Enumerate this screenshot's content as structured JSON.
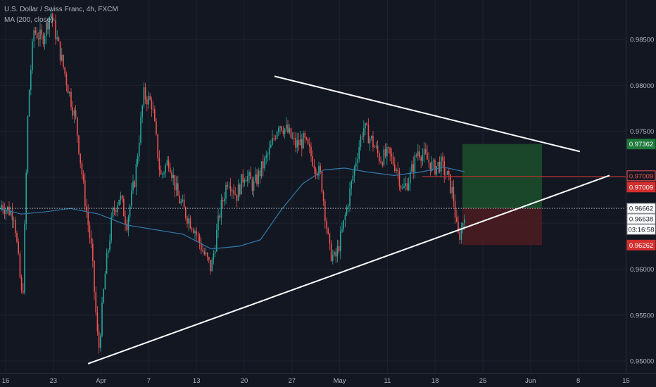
{
  "legend": {
    "symbol": "U.S. Dollar / Swiss Franc, 4h, FXCM",
    "indicator": "MA (200, close)"
  },
  "colors": {
    "background": "#131722",
    "grid": "#1e222d",
    "up": "#26a69a",
    "down": "#ef5350",
    "ma": "#3179a8",
    "trendline": "#ffffff",
    "profit_zone": "#1c4b2b",
    "loss_zone": "#4b1c22",
    "entry_line": "#c9302c",
    "axis_text": "#b2b5be"
  },
  "chart_data": {
    "type": "candlestick",
    "y_ticks": [
      "0.95000",
      "0.95500",
      "0.96000",
      "0.96500",
      "0.97000",
      "0.97500",
      "0.98000",
      "0.98500"
    ],
    "x_ticks": [
      "16",
      "23",
      "Apr",
      "7",
      "13",
      "20",
      "27",
      "May",
      "11",
      "18",
      "25",
      "Jun",
      "8",
      "15"
    ],
    "ylim": [
      0.9487,
      0.9893
    ],
    "price_tags": {
      "target": "0.97362",
      "entry_a": "0.97009",
      "entry_b": "0.97009",
      "current": "0.96662",
      "bid": "0.96638",
      "countdown": "03:16:58",
      "stop": "0.96262"
    },
    "anchors": [
      {
        "x": 2,
        "y": 0.967
      },
      {
        "x": 20,
        "y": 0.966
      },
      {
        "x": 32,
        "y": 0.956
      },
      {
        "x": 40,
        "y": 0.978
      },
      {
        "x": 48,
        "y": 0.986
      },
      {
        "x": 60,
        "y": 0.985
      },
      {
        "x": 72,
        "y": 0.988
      },
      {
        "x": 84,
        "y": 0.984
      },
      {
        "x": 96,
        "y": 0.98
      },
      {
        "x": 108,
        "y": 0.976
      },
      {
        "x": 120,
        "y": 0.968
      },
      {
        "x": 130,
        "y": 0.962
      },
      {
        "x": 140,
        "y": 0.951
      },
      {
        "x": 150,
        "y": 0.96
      },
      {
        "x": 160,
        "y": 0.966
      },
      {
        "x": 170,
        "y": 0.968
      },
      {
        "x": 180,
        "y": 0.965
      },
      {
        "x": 192,
        "y": 0.97
      },
      {
        "x": 204,
        "y": 0.979
      },
      {
        "x": 216,
        "y": 0.978
      },
      {
        "x": 228,
        "y": 0.97
      },
      {
        "x": 240,
        "y": 0.972
      },
      {
        "x": 252,
        "y": 0.968
      },
      {
        "x": 264,
        "y": 0.966
      },
      {
        "x": 276,
        "y": 0.9645
      },
      {
        "x": 288,
        "y": 0.962
      },
      {
        "x": 300,
        "y": 0.96
      },
      {
        "x": 312,
        "y": 0.966
      },
      {
        "x": 324,
        "y": 0.97
      },
      {
        "x": 336,
        "y": 0.968
      },
      {
        "x": 348,
        "y": 0.9705
      },
      {
        "x": 360,
        "y": 0.969
      },
      {
        "x": 372,
        "y": 0.971
      },
      {
        "x": 384,
        "y": 0.973
      },
      {
        "x": 396,
        "y": 0.976
      },
      {
        "x": 408,
        "y": 0.975
      },
      {
        "x": 420,
        "y": 0.9735
      },
      {
        "x": 432,
        "y": 0.974
      },
      {
        "x": 444,
        "y": 0.972
      },
      {
        "x": 456,
        "y": 0.97
      },
      {
        "x": 462,
        "y": 0.966
      },
      {
        "x": 468,
        "y": 0.962
      },
      {
        "x": 476,
        "y": 0.961
      },
      {
        "x": 486,
        "y": 0.964
      },
      {
        "x": 496,
        "y": 0.968
      },
      {
        "x": 506,
        "y": 0.972
      },
      {
        "x": 516,
        "y": 0.9755
      },
      {
        "x": 528,
        "y": 0.974
      },
      {
        "x": 540,
        "y": 0.972
      },
      {
        "x": 552,
        "y": 0.9725
      },
      {
        "x": 564,
        "y": 0.971
      },
      {
        "x": 572,
        "y": 0.9685
      },
      {
        "x": 582,
        "y": 0.97
      },
      {
        "x": 594,
        "y": 0.973
      },
      {
        "x": 606,
        "y": 0.972
      },
      {
        "x": 616,
        "y": 0.971
      },
      {
        "x": 626,
        "y": 0.9715
      },
      {
        "x": 636,
        "y": 0.97
      },
      {
        "x": 644,
        "y": 0.968
      },
      {
        "x": 650,
        "y": 0.9635
      },
      {
        "x": 655,
        "y": 0.964
      },
      {
        "x": 660,
        "y": 0.9664
      }
    ],
    "ma_path": [
      {
        "x": 0,
        "y": 0.9666
      },
      {
        "x": 30,
        "y": 0.966
      },
      {
        "x": 60,
        "y": 0.9662
      },
      {
        "x": 100,
        "y": 0.9666
      },
      {
        "x": 140,
        "y": 0.966
      },
      {
        "x": 180,
        "y": 0.9648
      },
      {
        "x": 220,
        "y": 0.9643
      },
      {
        "x": 260,
        "y": 0.9638
      },
      {
        "x": 300,
        "y": 0.9622
      },
      {
        "x": 340,
        "y": 0.9625
      },
      {
        "x": 370,
        "y": 0.9632
      },
      {
        "x": 400,
        "y": 0.9665
      },
      {
        "x": 430,
        "y": 0.9693
      },
      {
        "x": 460,
        "y": 0.9708
      },
      {
        "x": 490,
        "y": 0.971
      },
      {
        "x": 520,
        "y": 0.9706
      },
      {
        "x": 560,
        "y": 0.9702
      },
      {
        "x": 600,
        "y": 0.9706
      },
      {
        "x": 630,
        "y": 0.9711
      },
      {
        "x": 660,
        "y": 0.9706
      }
    ],
    "trendlines": [
      {
        "name": "upper-resistance",
        "from": {
          "x": 390,
          "y": 0.981
        },
        "to": {
          "x": 824,
          "y": 0.9728
        }
      },
      {
        "name": "lower-support",
        "from": {
          "x": 125,
          "y": 0.9497
        },
        "to": {
          "x": 866,
          "y": 0.9702
        }
      }
    ],
    "position": {
      "x_start": 657,
      "x_end": 770,
      "entry": 0.96662,
      "target": 0.97362,
      "stop": 0.96262
    },
    "entry_line": {
      "x_start": 600,
      "y": 0.97009
    }
  }
}
